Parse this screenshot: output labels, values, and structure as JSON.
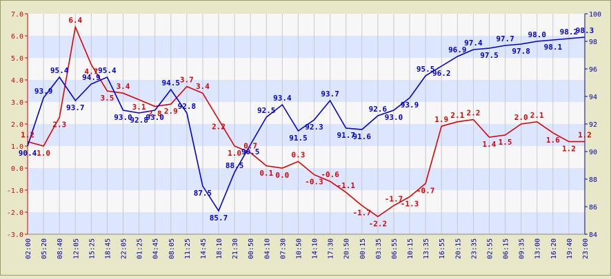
{
  "chart_data": {
    "type": "line",
    "title": "",
    "xlabel": "",
    "ylabel": "",
    "categories": [
      "02:00",
      "05:20",
      "08:40",
      "12:05",
      "15:25",
      "18:45",
      "22:05",
      "01:25",
      "04:45",
      "08:05",
      "11:25",
      "14:45",
      "18:10",
      "21:30",
      "00:50",
      "04:10",
      "07:30",
      "10:50",
      "14:10",
      "17:30",
      "20:50",
      "00:15",
      "03:35",
      "06:55",
      "10:15",
      "13:35",
      "16:55",
      "20:15",
      "23:35",
      "02:55",
      "06:15",
      "09:35",
      "13:00",
      "16:20",
      "19:40",
      "23:00"
    ],
    "y_left": {
      "range": [
        -3.0,
        7.0
      ],
      "ticks": [
        "-3.0",
        "-2.0",
        "-1.0",
        "0.0",
        "1.0",
        "2.0",
        "3.0",
        "4.0",
        "5.0",
        "6.0",
        "7.0"
      ]
    },
    "y_right": {
      "range": [
        84,
        100
      ],
      "ticks": [
        "84",
        "86",
        "88",
        "90",
        "92",
        "94",
        "96",
        "98",
        "100"
      ]
    },
    "grid": "alternating horizontal bands, vertical gridlines",
    "series": [
      {
        "axis": "left",
        "color": "#dd0000",
        "values": [
          1.2,
          1.0,
          2.3,
          6.4,
          4.7,
          3.5,
          3.4,
          3.1,
          2.8,
          2.9,
          3.7,
          3.4,
          2.2,
          1.0,
          0.7,
          0.1,
          0.0,
          0.3,
          -0.3,
          -0.6,
          -1.1,
          -1.7,
          -2.2,
          -1.7,
          -1.3,
          -0.7,
          1.9,
          2.1,
          2.2,
          1.4,
          1.5,
          2.0,
          2.1,
          1.6,
          1.2,
          1.2
        ],
        "labels": [
          "1.2",
          "1.0",
          "2.3",
          "6.4",
          "4.7",
          "3.5",
          "3.4",
          "3.1",
          "2.8",
          "2.9",
          "3.7",
          "3.4",
          "2.2",
          "1.0",
          "0.7",
          "0.1",
          "0.0",
          "0.3",
          "-0.3",
          "-0.6",
          "-1.1",
          "-1.7",
          "-2.2",
          "-1.7",
          "-1.3",
          "-0.7",
          "1.9",
          "2.1",
          "2.2",
          "1.4",
          "1.5",
          "2.0",
          "2.1",
          "1.6",
          "1.2",
          "1.2"
        ]
      },
      {
        "axis": "right",
        "color": "#0000cc",
        "values": [
          90.4,
          93.9,
          95.4,
          93.7,
          94.9,
          95.4,
          93.0,
          92.8,
          93.0,
          94.5,
          92.8,
          87.5,
          85.7,
          88.5,
          90.5,
          92.5,
          93.4,
          91.5,
          92.3,
          93.7,
          91.7,
          91.6,
          92.6,
          93.0,
          93.9,
          95.5,
          96.2,
          96.9,
          97.4,
          97.5,
          97.7,
          97.8,
          98.0,
          98.1,
          98.2,
          98.3
        ],
        "labels": [
          "90.4",
          "93.9",
          "95.4",
          "93.7",
          "94.9",
          "95.4",
          "93.0",
          "92.8",
          "93.0",
          "94.5",
          "92.8",
          "87.5",
          "85.7",
          "88.5",
          "90.5",
          "92.5",
          "93.4",
          "91.5",
          "92.3",
          "93.7",
          "91.7",
          "91.6",
          "92.6",
          "93.0",
          "93.9",
          "95.5",
          "96.2",
          "96.9",
          "97.4",
          "97.5",
          "97.7",
          "97.8",
          "98.0",
          "98.1",
          "98.2",
          "98.3"
        ]
      }
    ]
  }
}
